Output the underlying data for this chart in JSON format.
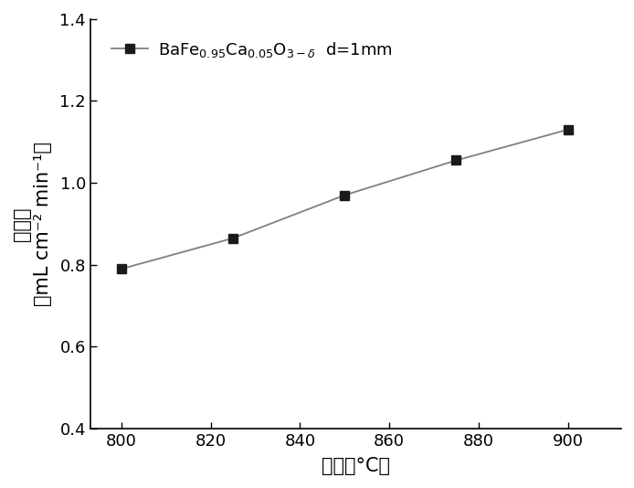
{
  "x": [
    800,
    825,
    850,
    875,
    900
  ],
  "y": [
    0.79,
    0.865,
    0.97,
    1.055,
    1.13
  ],
  "xlim": [
    793,
    912
  ],
  "ylim": [
    0.4,
    1.4
  ],
  "xticks": [
    800,
    820,
    840,
    860,
    880,
    900
  ],
  "yticks": [
    0.4,
    0.6,
    0.8,
    1.0,
    1.2,
    1.4
  ],
  "xlabel": "温度（°C）",
  "ylabel_cn": "透氧率",
  "ylabel_units": "（mL cm⁻² min⁻¹）",
  "line_color": "#808080",
  "marker_color": "#1a1a1a",
  "marker": "s",
  "marker_size": 7,
  "line_width": 1.3,
  "background_color": "#ffffff",
  "tick_fontsize": 13,
  "label_fontsize": 15,
  "legend_fontsize": 13
}
